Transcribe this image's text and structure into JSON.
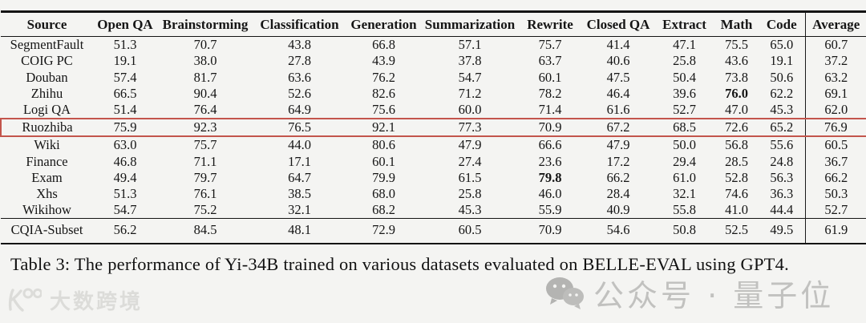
{
  "table": {
    "columns": [
      "Source",
      "Open QA",
      "Brainstorming",
      "Classification",
      "Generation",
      "Summarization",
      "Rewrite",
      "Closed QA",
      "Extract",
      "Math",
      "Code",
      "Average"
    ],
    "rows": [
      {
        "label": "SegmentFault",
        "values": [
          "51.3",
          "70.7",
          "43.8",
          "66.8",
          "57.1",
          "75.7",
          "41.4",
          "47.1",
          "75.5",
          "65.0",
          "60.7"
        ],
        "bold": [],
        "highlighted": false,
        "section_start": false
      },
      {
        "label": "COIG PC",
        "values": [
          "19.1",
          "38.0",
          "27.8",
          "43.9",
          "37.8",
          "63.7",
          "40.6",
          "25.8",
          "43.6",
          "19.1",
          "37.2"
        ],
        "bold": [],
        "highlighted": false,
        "section_start": false
      },
      {
        "label": "Douban",
        "values": [
          "57.4",
          "81.7",
          "63.6",
          "76.2",
          "54.7",
          "60.1",
          "47.5",
          "50.4",
          "73.8",
          "50.6",
          "63.2"
        ],
        "bold": [],
        "highlighted": false,
        "section_start": false
      },
      {
        "label": "Zhihu",
        "values": [
          "66.5",
          "90.4",
          "52.6",
          "82.6",
          "71.2",
          "78.2",
          "46.4",
          "39.6",
          "76.0",
          "62.2",
          "69.1"
        ],
        "bold": [
          8
        ],
        "highlighted": false,
        "section_start": false
      },
      {
        "label": "Logi QA",
        "values": [
          "51.4",
          "76.4",
          "64.9",
          "75.6",
          "60.0",
          "71.4",
          "61.6",
          "52.7",
          "47.0",
          "45.3",
          "62.0"
        ],
        "bold": [],
        "highlighted": false,
        "section_start": false
      },
      {
        "label": "Ruozhiba",
        "values": [
          "75.9",
          "92.3",
          "76.5",
          "92.1",
          "77.3",
          "70.9",
          "67.2",
          "68.5",
          "72.6",
          "65.2",
          "76.9"
        ],
        "bold": [
          0,
          1,
          2,
          3,
          4,
          6,
          7,
          9,
          10
        ],
        "highlighted": true,
        "section_start": false
      },
      {
        "label": "Wiki",
        "values": [
          "63.0",
          "75.7",
          "44.0",
          "80.6",
          "47.9",
          "66.6",
          "47.9",
          "50.0",
          "56.8",
          "55.6",
          "60.5"
        ],
        "bold": [],
        "highlighted": false,
        "section_start": false
      },
      {
        "label": "Finance",
        "values": [
          "46.8",
          "71.1",
          "17.1",
          "60.1",
          "27.4",
          "23.6",
          "17.2",
          "29.4",
          "28.5",
          "24.8",
          "36.7"
        ],
        "bold": [],
        "highlighted": false,
        "section_start": false
      },
      {
        "label": "Exam",
        "values": [
          "49.4",
          "79.7",
          "64.7",
          "79.9",
          "61.5",
          "79.8",
          "66.2",
          "61.0",
          "52.8",
          "56.3",
          "66.2"
        ],
        "bold": [
          5
        ],
        "highlighted": false,
        "section_start": false
      },
      {
        "label": "Xhs",
        "values": [
          "51.3",
          "76.1",
          "38.5",
          "68.0",
          "25.8",
          "46.0",
          "28.4",
          "32.1",
          "74.6",
          "36.3",
          "50.3"
        ],
        "bold": [],
        "highlighted": false,
        "section_start": false
      },
      {
        "label": "Wikihow",
        "values": [
          "54.7",
          "75.2",
          "32.1",
          "68.2",
          "45.3",
          "55.9",
          "40.9",
          "55.8",
          "41.0",
          "44.4",
          "52.7"
        ],
        "bold": [],
        "highlighted": false,
        "section_start": false
      },
      {
        "label": "CQIA-Subset",
        "values": [
          "56.2",
          "84.5",
          "48.1",
          "72.9",
          "60.5",
          "70.9",
          "54.6",
          "50.8",
          "52.5",
          "49.5",
          "61.9"
        ],
        "bold": [],
        "highlighted": false,
        "section_start": true
      }
    ],
    "highlight_color": "#c3554c"
  },
  "caption": "Table 3: The performance of Yi-34B trained on various datasets evaluated on BELLE-EVAL using GPT4.",
  "watermarks": {
    "left_text": "大数跨境",
    "right_text": "公众号 · 量子位"
  }
}
